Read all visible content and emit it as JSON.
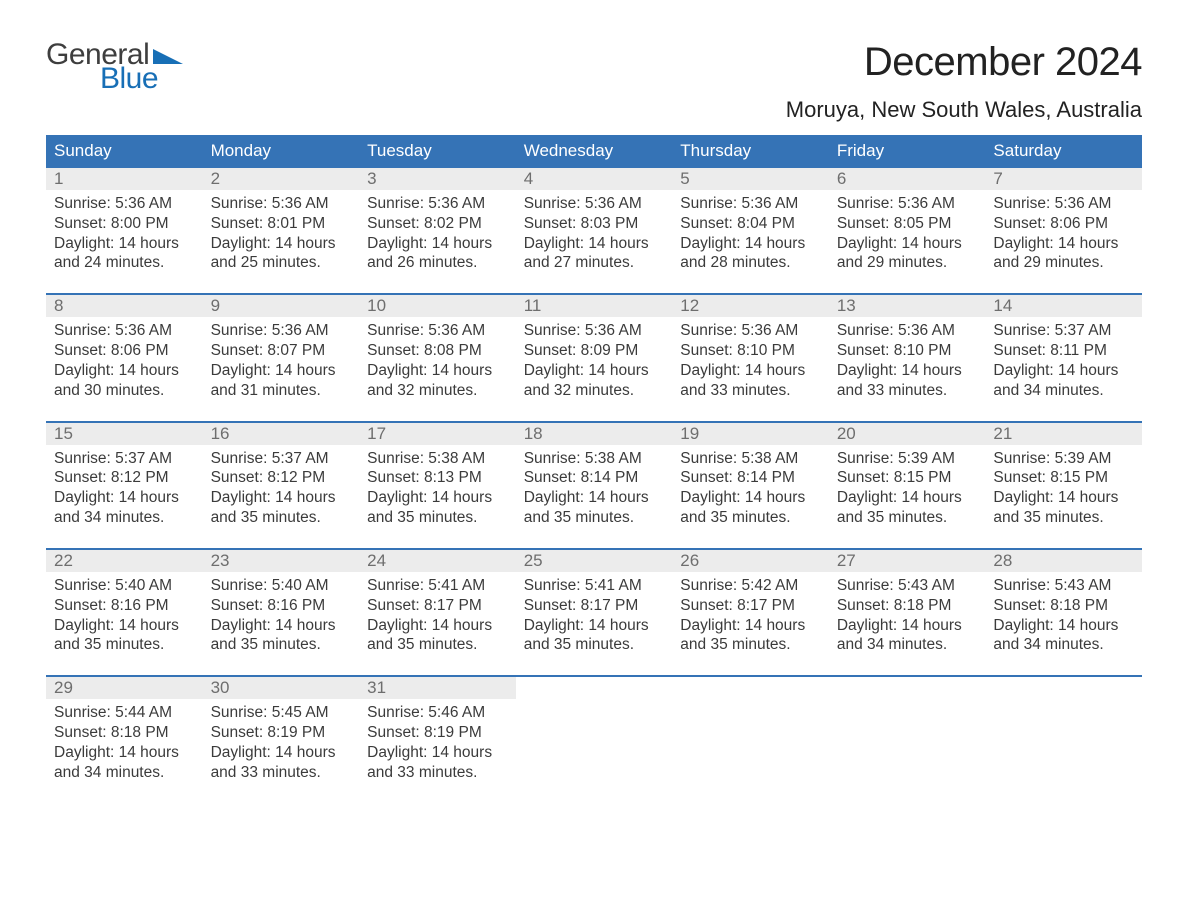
{
  "logo": {
    "line1": "General",
    "line2": "Blue",
    "flag_color": "#186fb6",
    "text1_color": "#3e3e3e"
  },
  "title": "December 2024",
  "location": "Moruya, New South Wales, Australia",
  "colors": {
    "header_bg": "#3573b6",
    "header_text": "#ffffff",
    "week_border": "#3573b6",
    "daynum_bg": "#ececec",
    "daynum_text": "#6e6e6e",
    "body_text": "#3b3b3b",
    "page_bg": "#ffffff"
  },
  "typography": {
    "title_fontsize": 40,
    "location_fontsize": 22,
    "header_fontsize": 17,
    "daynum_fontsize": 17,
    "body_fontsize": 15.5,
    "font_family": "Arial"
  },
  "layout": {
    "columns": 7,
    "rows": 5,
    "start_weekday": "Sunday"
  },
  "weekdays": [
    "Sunday",
    "Monday",
    "Tuesday",
    "Wednesday",
    "Thursday",
    "Friday",
    "Saturday"
  ],
  "days": [
    {
      "n": 1,
      "sunrise": "5:36 AM",
      "sunset": "8:00 PM",
      "daylight": "14 hours and 24 minutes."
    },
    {
      "n": 2,
      "sunrise": "5:36 AM",
      "sunset": "8:01 PM",
      "daylight": "14 hours and 25 minutes."
    },
    {
      "n": 3,
      "sunrise": "5:36 AM",
      "sunset": "8:02 PM",
      "daylight": "14 hours and 26 minutes."
    },
    {
      "n": 4,
      "sunrise": "5:36 AM",
      "sunset": "8:03 PM",
      "daylight": "14 hours and 27 minutes."
    },
    {
      "n": 5,
      "sunrise": "5:36 AM",
      "sunset": "8:04 PM",
      "daylight": "14 hours and 28 minutes."
    },
    {
      "n": 6,
      "sunrise": "5:36 AM",
      "sunset": "8:05 PM",
      "daylight": "14 hours and 29 minutes."
    },
    {
      "n": 7,
      "sunrise": "5:36 AM",
      "sunset": "8:06 PM",
      "daylight": "14 hours and 29 minutes."
    },
    {
      "n": 8,
      "sunrise": "5:36 AM",
      "sunset": "8:06 PM",
      "daylight": "14 hours and 30 minutes."
    },
    {
      "n": 9,
      "sunrise": "5:36 AM",
      "sunset": "8:07 PM",
      "daylight": "14 hours and 31 minutes."
    },
    {
      "n": 10,
      "sunrise": "5:36 AM",
      "sunset": "8:08 PM",
      "daylight": "14 hours and 32 minutes."
    },
    {
      "n": 11,
      "sunrise": "5:36 AM",
      "sunset": "8:09 PM",
      "daylight": "14 hours and 32 minutes."
    },
    {
      "n": 12,
      "sunrise": "5:36 AM",
      "sunset": "8:10 PM",
      "daylight": "14 hours and 33 minutes."
    },
    {
      "n": 13,
      "sunrise": "5:36 AM",
      "sunset": "8:10 PM",
      "daylight": "14 hours and 33 minutes."
    },
    {
      "n": 14,
      "sunrise": "5:37 AM",
      "sunset": "8:11 PM",
      "daylight": "14 hours and 34 minutes."
    },
    {
      "n": 15,
      "sunrise": "5:37 AM",
      "sunset": "8:12 PM",
      "daylight": "14 hours and 34 minutes."
    },
    {
      "n": 16,
      "sunrise": "5:37 AM",
      "sunset": "8:12 PM",
      "daylight": "14 hours and 35 minutes."
    },
    {
      "n": 17,
      "sunrise": "5:38 AM",
      "sunset": "8:13 PM",
      "daylight": "14 hours and 35 minutes."
    },
    {
      "n": 18,
      "sunrise": "5:38 AM",
      "sunset": "8:14 PM",
      "daylight": "14 hours and 35 minutes."
    },
    {
      "n": 19,
      "sunrise": "5:38 AM",
      "sunset": "8:14 PM",
      "daylight": "14 hours and 35 minutes."
    },
    {
      "n": 20,
      "sunrise": "5:39 AM",
      "sunset": "8:15 PM",
      "daylight": "14 hours and 35 minutes."
    },
    {
      "n": 21,
      "sunrise": "5:39 AM",
      "sunset": "8:15 PM",
      "daylight": "14 hours and 35 minutes."
    },
    {
      "n": 22,
      "sunrise": "5:40 AM",
      "sunset": "8:16 PM",
      "daylight": "14 hours and 35 minutes."
    },
    {
      "n": 23,
      "sunrise": "5:40 AM",
      "sunset": "8:16 PM",
      "daylight": "14 hours and 35 minutes."
    },
    {
      "n": 24,
      "sunrise": "5:41 AM",
      "sunset": "8:17 PM",
      "daylight": "14 hours and 35 minutes."
    },
    {
      "n": 25,
      "sunrise": "5:41 AM",
      "sunset": "8:17 PM",
      "daylight": "14 hours and 35 minutes."
    },
    {
      "n": 26,
      "sunrise": "5:42 AM",
      "sunset": "8:17 PM",
      "daylight": "14 hours and 35 minutes."
    },
    {
      "n": 27,
      "sunrise": "5:43 AM",
      "sunset": "8:18 PM",
      "daylight": "14 hours and 34 minutes."
    },
    {
      "n": 28,
      "sunrise": "5:43 AM",
      "sunset": "8:18 PM",
      "daylight": "14 hours and 34 minutes."
    },
    {
      "n": 29,
      "sunrise": "5:44 AM",
      "sunset": "8:18 PM",
      "daylight": "14 hours and 34 minutes."
    },
    {
      "n": 30,
      "sunrise": "5:45 AM",
      "sunset": "8:19 PM",
      "daylight": "14 hours and 33 minutes."
    },
    {
      "n": 31,
      "sunrise": "5:46 AM",
      "sunset": "8:19 PM",
      "daylight": "14 hours and 33 minutes."
    }
  ],
  "labels": {
    "sunrise": "Sunrise: ",
    "sunset": "Sunset: ",
    "daylight": "Daylight: "
  }
}
